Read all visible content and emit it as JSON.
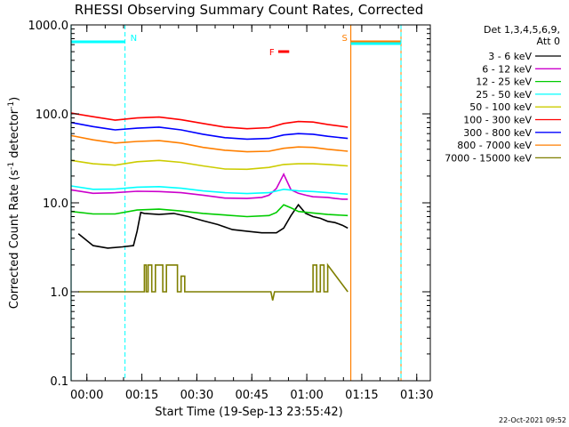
{
  "chart_data": {
    "type": "line",
    "title": "RHESSI Observing Summary Count Rates, Corrected",
    "xlabel": "Start Time (19-Sep-13 23:55:42)",
    "ylabel": {
      "main": "Corrected Count Rate (s",
      "exponent": "-1",
      "detector": " detector",
      "detector_exponent": "-1",
      "close": ")"
    },
    "y_scale": "log",
    "ylim": [
      0.1,
      1000
    ],
    "y_ticks": [
      0.1,
      1,
      10,
      100,
      1000
    ],
    "y_tick_labels": [
      "0.1",
      "1.0",
      "10.0",
      "100.0",
      "1000.0"
    ],
    "x_unit": "minutes after 19-Sep-13 23:55:42",
    "xlim": [
      0,
      98
    ],
    "x_ticks": [
      4.3,
      19.3,
      34.3,
      49.3,
      64.3,
      79.3,
      94.3
    ],
    "x_tick_labels": [
      "00:00",
      "00:15",
      "00:30",
      "00:45",
      "01:00",
      "01:15",
      "01:30"
    ],
    "grid": false,
    "legend_position": "right-outside",
    "legend_header": {
      "detectors": "Det 1,3,4,5,6,9,",
      "attenuator": "Att 0"
    },
    "timestamp": "22-Oct-2021 09:52",
    "series": [
      {
        "name": "3 - 6 keV",
        "color": "#000000",
        "x": [
          2,
          6,
          10,
          14,
          17,
          18,
          19,
          20,
          24,
          28,
          32,
          36,
          40,
          44,
          48,
          52,
          56,
          58,
          60,
          62,
          64,
          66,
          68,
          70,
          72,
          74,
          75.5
        ],
        "y": [
          4.5,
          3.3,
          3.1,
          3.2,
          3.3,
          4.8,
          7.8,
          7.6,
          7.4,
          7.6,
          7.0,
          6.3,
          5.7,
          5.0,
          4.8,
          4.6,
          4.6,
          5.2,
          7.2,
          9.5,
          7.6,
          7.0,
          6.7,
          6.2,
          6.0,
          5.6,
          5.2
        ]
      },
      {
        "name": "6 - 12 keV",
        "color": "#cc00cc",
        "x": [
          0,
          6,
          12,
          18,
          24,
          30,
          36,
          42,
          48,
          52,
          54,
          56,
          58,
          60,
          62,
          64,
          66,
          68,
          70,
          72,
          74,
          75.5
        ],
        "y": [
          14.0,
          12.8,
          13.0,
          13.5,
          13.4,
          13.0,
          12.2,
          11.3,
          11.2,
          11.5,
          12.2,
          14.5,
          21.0,
          14.0,
          12.8,
          12.2,
          11.7,
          11.6,
          11.5,
          11.2,
          11.0,
          11.0
        ]
      },
      {
        "name": "12 - 25 keV",
        "color": "#00cc00",
        "x": [
          0,
          6,
          12,
          18,
          24,
          30,
          36,
          42,
          48,
          54,
          56,
          58,
          60,
          62,
          66,
          70,
          75.5
        ],
        "y": [
          8.0,
          7.5,
          7.5,
          8.3,
          8.5,
          8.1,
          7.6,
          7.3,
          7.0,
          7.2,
          7.8,
          9.5,
          8.8,
          8.0,
          7.7,
          7.4,
          7.2
        ]
      },
      {
        "name": "25 - 50 keV",
        "color": "#00ffff",
        "x": [
          0,
          6,
          12,
          18,
          24,
          30,
          36,
          42,
          48,
          54,
          58,
          62,
          66,
          70,
          75.5
        ],
        "y": [
          15.5,
          14.2,
          14.3,
          15.0,
          15.2,
          14.6,
          13.6,
          13.0,
          12.7,
          13.0,
          14.2,
          13.6,
          13.4,
          13.0,
          12.5
        ]
      },
      {
        "name": "50 - 100 keV",
        "color": "#cccc00",
        "x": [
          0,
          6,
          12,
          18,
          24,
          30,
          36,
          42,
          48,
          54,
          58,
          62,
          66,
          70,
          75.5
        ],
        "y": [
          30,
          27.5,
          26.5,
          29.0,
          30,
          28.5,
          26.0,
          24.0,
          23.8,
          25.0,
          27.0,
          27.5,
          27.5,
          27.0,
          26.0
        ]
      },
      {
        "name": "100 - 300 keV",
        "color": "#ff0000",
        "x": [
          0,
          6,
          12,
          18,
          24,
          30,
          36,
          42,
          48,
          54,
          58,
          62,
          66,
          70,
          75.5
        ],
        "y": [
          102,
          93,
          85,
          90,
          92,
          86,
          78,
          71,
          68,
          70,
          78,
          82,
          81,
          76,
          71
        ]
      },
      {
        "name": "300 - 800 keV",
        "color": "#0000ff",
        "x": [
          0,
          6,
          12,
          18,
          24,
          30,
          36,
          42,
          48,
          54,
          58,
          62,
          66,
          70,
          75.5
        ],
        "y": [
          80,
          72,
          66,
          69,
          71,
          66,
          59,
          54,
          52,
          53,
          58,
          60,
          59,
          56,
          53
        ]
      },
      {
        "name": "800 - 7000 keV",
        "color": "#ff7f00",
        "x": [
          0,
          6,
          12,
          18,
          24,
          30,
          36,
          42,
          48,
          54,
          58,
          62,
          66,
          70,
          75.5
        ],
        "y": [
          57,
          51,
          47,
          49,
          50,
          47,
          42,
          39,
          37.5,
          38,
          41,
          42.5,
          42,
          40,
          38
        ]
      },
      {
        "name": "7000 - 15000 keV",
        "color": "#7f7f00",
        "x": [
          2,
          17,
          19,
          20,
          20,
          20.5,
          20.5,
          21,
          21,
          22,
          22,
          23,
          23,
          25,
          25,
          26,
          26,
          29,
          29,
          30,
          30,
          31,
          31,
          54.5,
          55,
          55.5,
          66,
          66,
          67,
          67,
          68,
          68,
          69,
          69,
          70,
          70,
          75.5
        ],
        "y": [
          1.0,
          1.0,
          1.0,
          1.0,
          2.0,
          2.0,
          1.0,
          1.0,
          2.0,
          2.0,
          1.0,
          1.0,
          2.0,
          2.0,
          1.0,
          1.0,
          2.0,
          2.0,
          1.0,
          1.0,
          1.5,
          1.5,
          1.0,
          1.0,
          0.8,
          1.0,
          1.0,
          2.0,
          2.0,
          1.0,
          1.0,
          2.0,
          2.0,
          1.0,
          1.0,
          2.0,
          1.0
        ]
      }
    ],
    "bands": [
      {
        "label": "N",
        "color": "#00ffff",
        "start": 0,
        "end": 14.7,
        "marker": "start"
      },
      {
        "label": "F",
        "color": "#ff0000",
        "start": 56.5,
        "end": 59.5,
        "marker": "start"
      },
      {
        "label": "S",
        "color": "#ff7f00",
        "start": 76.3,
        "end": 90,
        "marker": "start"
      },
      {
        "label": "",
        "color": "#00ffff",
        "start": 76.3,
        "end": 90,
        "marker": "end"
      }
    ]
  }
}
